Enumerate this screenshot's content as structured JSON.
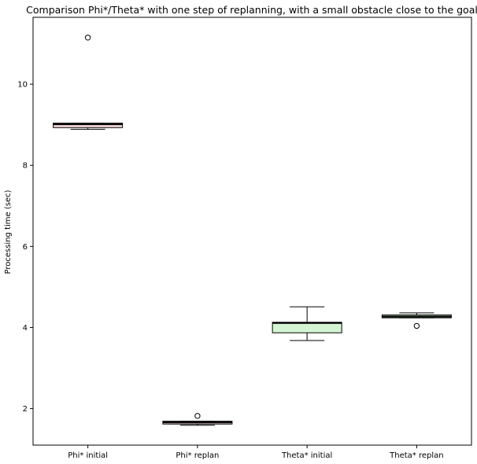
{
  "chart_data": {
    "type": "box",
    "title": "Comparison Phi*/Theta* with one step of replanning, with a small obstacle close to the goal",
    "xlabel": "",
    "ylabel": "Processing time (sec)",
    "ylim": [
      1.1,
      11.65
    ],
    "yticks": [
      2,
      4,
      6,
      8,
      10
    ],
    "grid": false,
    "categories": [
      "Phi* initial",
      "Phi* replan",
      "Theta* initial",
      "Theta* replan"
    ],
    "boxes": [
      {
        "category": "Phi* initial",
        "whisker_low": 8.89,
        "q1": 8.93,
        "median": 9.01,
        "q3": 9.04,
        "whisker_high": 9.04,
        "outliers": [
          11.15
        ],
        "fill": "#fde0e0"
      },
      {
        "category": "Phi* replan",
        "whisker_low": 1.59,
        "q1": 1.62,
        "median": 1.66,
        "q3": 1.69,
        "whisker_high": 1.69,
        "outliers": [
          1.82
        ],
        "fill": "#fde0e0"
      },
      {
        "category": "Theta* initial",
        "whisker_low": 3.68,
        "q1": 3.87,
        "median": 4.11,
        "q3": 4.13,
        "whisker_high": 4.51,
        "outliers": [],
        "fill": "#d4f5d4"
      },
      {
        "category": "Theta* replan",
        "whisker_low": 4.24,
        "q1": 4.24,
        "median": 4.27,
        "q3": 4.31,
        "whisker_high": 4.36,
        "outliers": [
          4.04
        ],
        "fill": "#d4f5d4"
      }
    ]
  }
}
